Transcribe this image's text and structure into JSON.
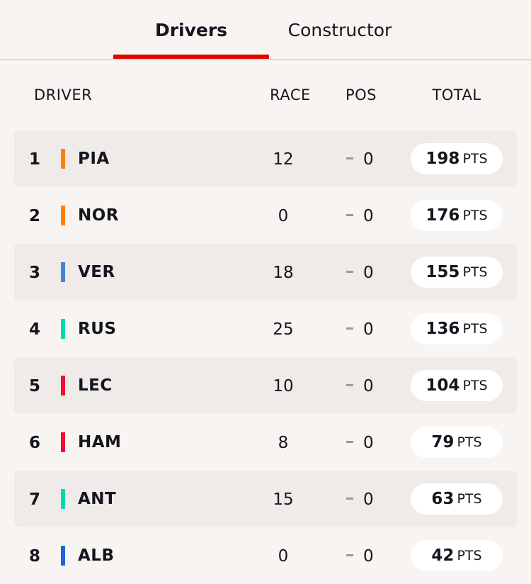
{
  "tabs": {
    "drivers": "Drivers",
    "constructor": "Constructor",
    "active_color": "#e10600"
  },
  "columns": {
    "driver": "DRIVER",
    "race": "RACE",
    "pos": "POS",
    "total": "TOTAL"
  },
  "pts_unit": "PTS",
  "rows": [
    {
      "position": "1",
      "code": "PIA",
      "race": "12",
      "delta": "0",
      "total": "198",
      "team_color": "#ff8000"
    },
    {
      "position": "2",
      "code": "NOR",
      "race": "0",
      "delta": "0",
      "total": "176",
      "team_color": "#ff8000"
    },
    {
      "position": "3",
      "code": "VER",
      "race": "18",
      "delta": "0",
      "total": "155",
      "team_color": "#4781d7"
    },
    {
      "position": "4",
      "code": "RUS",
      "race": "25",
      "delta": "0",
      "total": "136",
      "team_color": "#00d7b6"
    },
    {
      "position": "5",
      "code": "LEC",
      "race": "10",
      "delta": "0",
      "total": "104",
      "team_color": "#ed1131"
    },
    {
      "position": "6",
      "code": "HAM",
      "race": "8",
      "delta": "0",
      "total": "79",
      "team_color": "#ed1131"
    },
    {
      "position": "7",
      "code": "ANT",
      "race": "15",
      "delta": "0",
      "total": "63",
      "team_color": "#00d7b6"
    },
    {
      "position": "8",
      "code": "ALB",
      "race": "0",
      "delta": "0",
      "total": "42",
      "team_color": "#1868db"
    }
  ]
}
